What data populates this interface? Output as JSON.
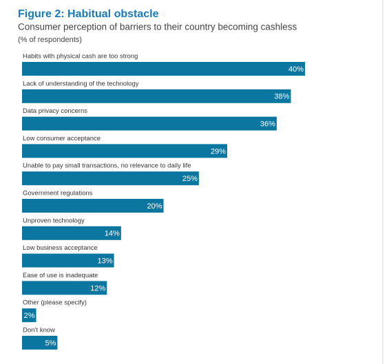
{
  "chart_data": {
    "type": "hbar",
    "title": "Figure 2: Habitual obstacle",
    "subtitle": "Consumer perception of barriers to their country becoming cashless",
    "note": "(% of respondents)",
    "categories": [
      "Habits with physical cash are too strong",
      "Lack of understanding of the technology",
      "Data privacy concerns",
      "Low consumer acceptance",
      "Unable to pay small transactions, no relevance to daily life",
      "Government regulations",
      "Unproven technology",
      "Low business acceptance",
      "Ease of use is inadequate",
      "Other (please specify)",
      "Don’t know"
    ],
    "values": [
      40,
      38,
      36,
      29,
      25,
      20,
      14,
      13,
      12,
      2,
      5
    ],
    "value_labels": [
      "40%",
      "38%",
      "36%",
      "29%",
      "25%",
      "20%",
      "14%",
      "13%",
      "12%",
      "2%",
      "5%"
    ],
    "color": "#0b77a1"
  }
}
